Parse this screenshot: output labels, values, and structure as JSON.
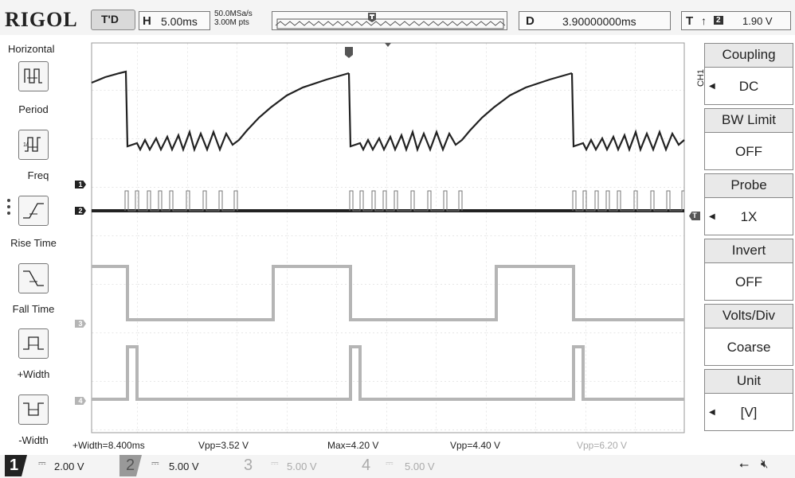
{
  "header": {
    "brand": "RIGOL",
    "trigger_status": "T'D",
    "h_label": "H",
    "timebase": "5.00ms",
    "sample_rate": "50.0MSa/s",
    "memory_depth": "3.00M pts",
    "delay_label": "D",
    "delay_value": "3.90000000ms",
    "trig_label": "T",
    "trig_source": "2",
    "trig_level": "1.90 V"
  },
  "left_menu": {
    "title": "Horizontal",
    "items": [
      {
        "label": "Period"
      },
      {
        "label": "Freq"
      },
      {
        "label": "Rise Time"
      },
      {
        "label": "Fall Time"
      },
      {
        "label": "+Width"
      },
      {
        "label": "-Width"
      }
    ]
  },
  "right_menu": {
    "channel_tag": "CH1",
    "items": [
      {
        "label": "Coupling",
        "value": "DC"
      },
      {
        "label": "BW Limit",
        "value": "OFF"
      },
      {
        "label": "Probe",
        "value": "1X"
      },
      {
        "label": "Invert",
        "value": "OFF"
      },
      {
        "label": "Volts/Div",
        "value": "Coarse"
      },
      {
        "label": "Unit",
        "value": "[V]"
      }
    ]
  },
  "measurements": {
    "m1": "+Width=8.400ms",
    "m2": "Vpp=3.52 V",
    "m3": "Max=4.20 V",
    "m4": "Vpp=4.40 V",
    "m5": "Vpp=6.20 V"
  },
  "channels": [
    {
      "num": "1",
      "scale": "2.00 V"
    },
    {
      "num": "2",
      "scale": "5.00 V"
    },
    {
      "num": "3",
      "scale": "5.00 V"
    },
    {
      "num": "4",
      "scale": "5.00 V"
    }
  ],
  "markers": {
    "ch1": "1",
    "ch2": "2",
    "ch3": "3",
    "ch4": "4",
    "trig": "T"
  },
  "colors": {
    "trace_dark": "#222222",
    "trace_light": "#b5b5b5",
    "grid": "#bbbbbb"
  }
}
